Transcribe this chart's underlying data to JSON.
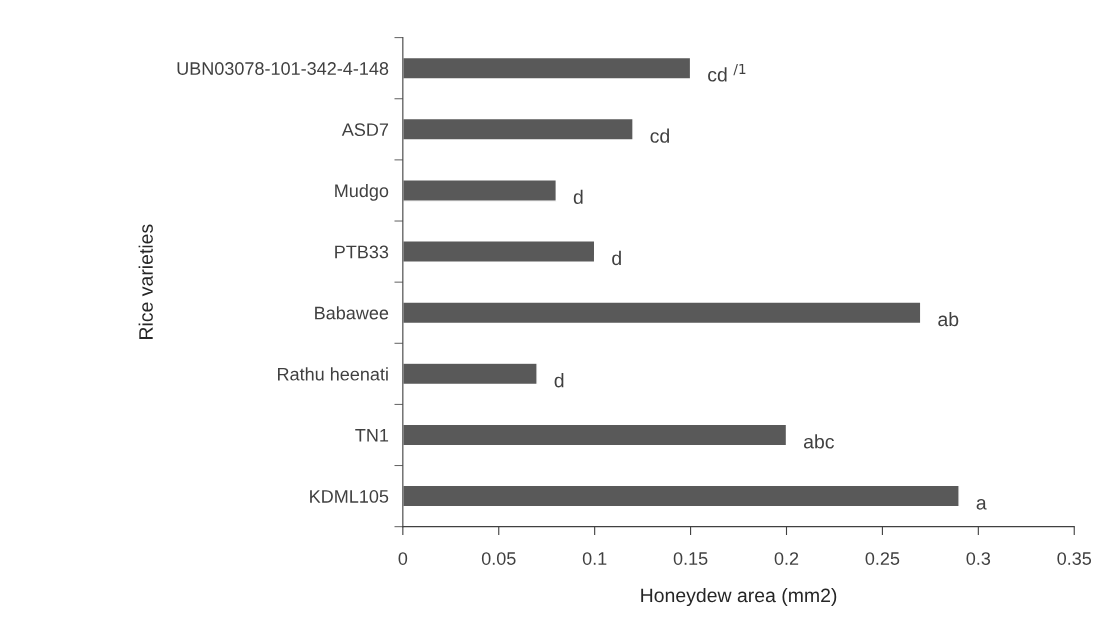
{
  "chart_data": {
    "type": "bar",
    "orientation": "horizontal",
    "categories": [
      "UBN03078-101-342-4-148",
      "ASD7",
      "Mudgo",
      "PTB33",
      "Babawee",
      "Rathu heenati",
      "TN1",
      "KDML105"
    ],
    "values": [
      0.15,
      0.12,
      0.08,
      0.1,
      0.27,
      0.07,
      0.2,
      0.29
    ],
    "annotations": [
      {
        "text": "cd $^{/1}$",
        "x": 0.15,
        "y": "UBN03078-101-342-4-148"
      },
      {
        "text": "cd",
        "x": 0.12,
        "y": "ASD7"
      },
      {
        "text": "d",
        "x": 0.08,
        "y": "Mudgo"
      },
      {
        "text": "d",
        "x": 0.1,
        "y": "PTB33"
      },
      {
        "text": "ab",
        "x": 0.27,
        "y": "Babawee"
      },
      {
        "text": "d",
        "x": 0.07,
        "y": "Rathu heenati"
      },
      {
        "text": "abc",
        "x": 0.2,
        "y": "TN1"
      },
      {
        "text": "a",
        "x": 0.29,
        "y": "KDML105"
      }
    ],
    "color": "#595959",
    "xlabel": "Honeydew area (mm2)",
    "ylabel": "Rice varieties",
    "xlim": [
      0,
      0.35
    ],
    "xticks": [
      0,
      0.05,
      0.1,
      0.15,
      0.2,
      0.25,
      0.3,
      0.35
    ],
    "grid": false,
    "legend": false
  }
}
